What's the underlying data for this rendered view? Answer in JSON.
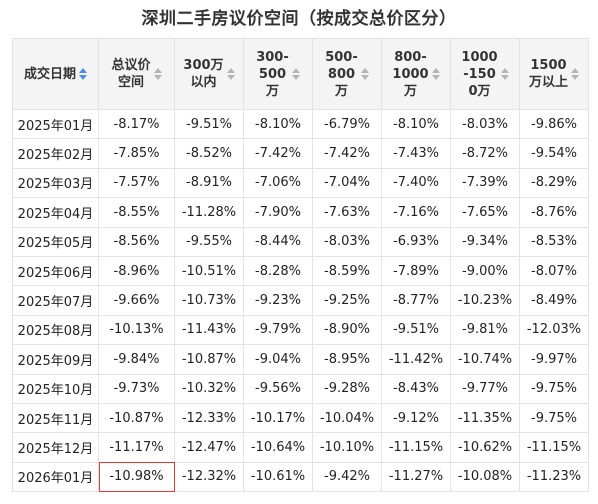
{
  "title": "深圳二手房议价空间（按成交总价区分）",
  "columns": [
    {
      "label": "成交日期",
      "sort_active": true
    },
    {
      "label": "总议价\n空间",
      "sort_active": false
    },
    {
      "label": "300万\n以内",
      "sort_active": false
    },
    {
      "label": "300-\n500\n万",
      "sort_active": false
    },
    {
      "label": "500-\n800\n万",
      "sort_active": false
    },
    {
      "label": "800-\n1000\n万",
      "sort_active": false
    },
    {
      "label": "1000\n-150\n0万",
      "sort_active": false
    },
    {
      "label": "1500\n万以上",
      "sort_active": false
    }
  ],
  "rows": [
    [
      "2025年01月",
      "-8.17%",
      "-9.51%",
      "-8.10%",
      "-6.79%",
      "-8.10%",
      "-8.03%",
      "-9.86%"
    ],
    [
      "2025年02月",
      "-7.85%",
      "-8.52%",
      "-7.42%",
      "-7.42%",
      "-7.43%",
      "-8.72%",
      "-9.54%"
    ],
    [
      "2025年03月",
      "-7.57%",
      "-8.91%",
      "-7.06%",
      "-7.04%",
      "-7.40%",
      "-7.39%",
      "-8.29%"
    ],
    [
      "2025年04月",
      "-8.55%",
      "-11.28%",
      "-7.90%",
      "-7.63%",
      "-7.16%",
      "-7.65%",
      "-8.76%"
    ],
    [
      "2025年05月",
      "-8.56%",
      "-9.55%",
      "-8.44%",
      "-8.03%",
      "-6.93%",
      "-9.34%",
      "-8.53%"
    ],
    [
      "2025年06月",
      "-8.96%",
      "-10.51%",
      "-8.28%",
      "-8.59%",
      "-7.89%",
      "-9.00%",
      "-8.07%"
    ],
    [
      "2025年07月",
      "-9.66%",
      "-10.73%",
      "-9.23%",
      "-9.25%",
      "-8.77%",
      "-10.23%",
      "-8.49%"
    ],
    [
      "2025年08月",
      "-10.13%",
      "-11.43%",
      "-9.79%",
      "-8.90%",
      "-9.51%",
      "-9.81%",
      "-12.03%"
    ],
    [
      "2025年09月",
      "-9.84%",
      "-10.87%",
      "-9.04%",
      "-8.95%",
      "-11.42%",
      "-10.74%",
      "-9.97%"
    ],
    [
      "2025年10月",
      "-9.73%",
      "-10.32%",
      "-9.56%",
      "-9.28%",
      "-8.43%",
      "-9.77%",
      "-9.75%"
    ],
    [
      "2025年11月",
      "-10.87%",
      "-12.33%",
      "-10.17%",
      "-10.04%",
      "-9.12%",
      "-11.35%",
      "-9.75%"
    ],
    [
      "2025年12月",
      "-11.17%",
      "-12.47%",
      "-10.64%",
      "-10.10%",
      "-11.15%",
      "-10.62%",
      "-11.15%"
    ],
    [
      "2026年01月",
      "-10.98%",
      "-12.32%",
      "-10.61%",
      "-9.42%",
      "-11.27%",
      "-10.08%",
      "-11.23%"
    ]
  ],
  "highlight_color": "#e23a3a",
  "sort_active_color": "#4a90e2",
  "sort_inactive_color": "#b5b5b5"
}
